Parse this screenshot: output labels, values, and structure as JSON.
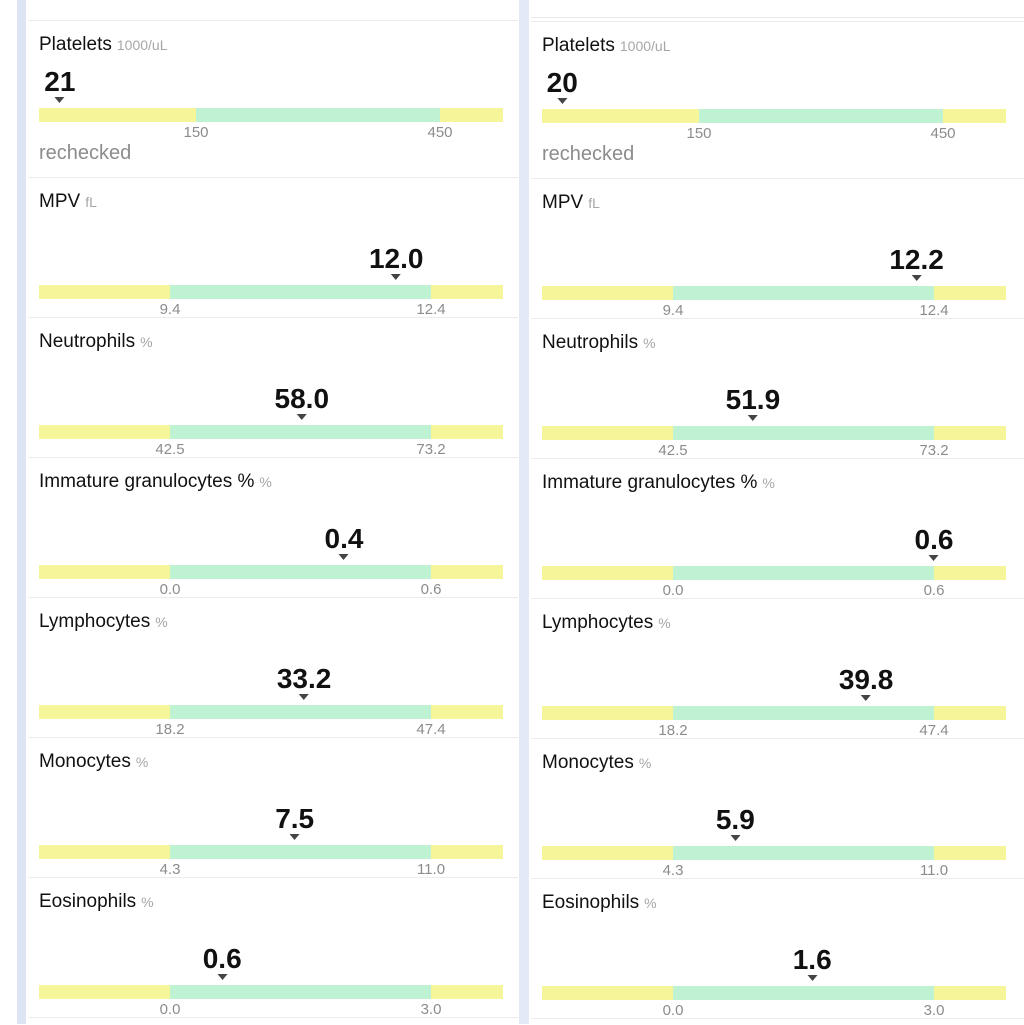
{
  "panels": [
    {
      "items": [
        {
          "name": "Platelets",
          "unit": "1000/uL",
          "value": "21",
          "value_num": 21,
          "low": "150",
          "high": "450",
          "low_num": 150,
          "high_num": 450,
          "note": "rechecked"
        },
        {
          "name": "MPV",
          "unit": "fL",
          "value": "12.0",
          "value_num": 12.0,
          "low": "9.4",
          "high": "12.4",
          "low_num": 9.4,
          "high_num": 12.4
        },
        {
          "name": "Neutrophils",
          "unit": "%",
          "value": "58.0",
          "value_num": 58.0,
          "low": "42.5",
          "high": "73.2",
          "low_num": 42.5,
          "high_num": 73.2
        },
        {
          "name": "Immature granulocytes %",
          "unit": "%",
          "value": "0.4",
          "value_num": 0.4,
          "low": "0.0",
          "high": "0.6",
          "low_num": 0.0,
          "high_num": 0.6
        },
        {
          "name": "Lymphocytes",
          "unit": "%",
          "value": "33.2",
          "value_num": 33.2,
          "low": "18.2",
          "high": "47.4",
          "low_num": 18.2,
          "high_num": 47.4
        },
        {
          "name": "Monocytes",
          "unit": "%",
          "value": "7.5",
          "value_num": 7.5,
          "low": "4.3",
          "high": "11.0",
          "low_num": 4.3,
          "high_num": 11.0
        },
        {
          "name": "Eosinophils",
          "unit": "%",
          "value": "0.6",
          "value_num": 0.6,
          "low": "0.0",
          "high": "3.0",
          "low_num": 0.0,
          "high_num": 3.0
        }
      ]
    },
    {
      "items": [
        {
          "name": "Platelets",
          "unit": "1000/uL",
          "value": "20",
          "value_num": 20,
          "low": "150",
          "high": "450",
          "low_num": 150,
          "high_num": 450,
          "note": "rechecked"
        },
        {
          "name": "MPV",
          "unit": "fL",
          "value": "12.2",
          "value_num": 12.2,
          "low": "9.4",
          "high": "12.4",
          "low_num": 9.4,
          "high_num": 12.4
        },
        {
          "name": "Neutrophils",
          "unit": "%",
          "value": "51.9",
          "value_num": 51.9,
          "low": "42.5",
          "high": "73.2",
          "low_num": 42.5,
          "high_num": 73.2
        },
        {
          "name": "Immature granulocytes %",
          "unit": "%",
          "value": "0.6",
          "value_num": 0.6,
          "low": "0.0",
          "high": "0.6",
          "low_num": 0.0,
          "high_num": 0.6
        },
        {
          "name": "Lymphocytes",
          "unit": "%",
          "value": "39.8",
          "value_num": 39.8,
          "low": "18.2",
          "high": "47.4",
          "low_num": 18.2,
          "high_num": 47.4
        },
        {
          "name": "Monocytes",
          "unit": "%",
          "value": "5.9",
          "value_num": 5.9,
          "low": "4.3",
          "high": "11.0",
          "low_num": 4.3,
          "high_num": 11.0
        },
        {
          "name": "Eosinophils",
          "unit": "%",
          "value": "1.6",
          "value_num": 1.6,
          "low": "0.0",
          "high": "3.0",
          "low_num": 0.0,
          "high_num": 3.0
        }
      ]
    }
  ],
  "colors": {
    "out_of_range": "#f7f59a",
    "in_range": "#bff2d3"
  }
}
